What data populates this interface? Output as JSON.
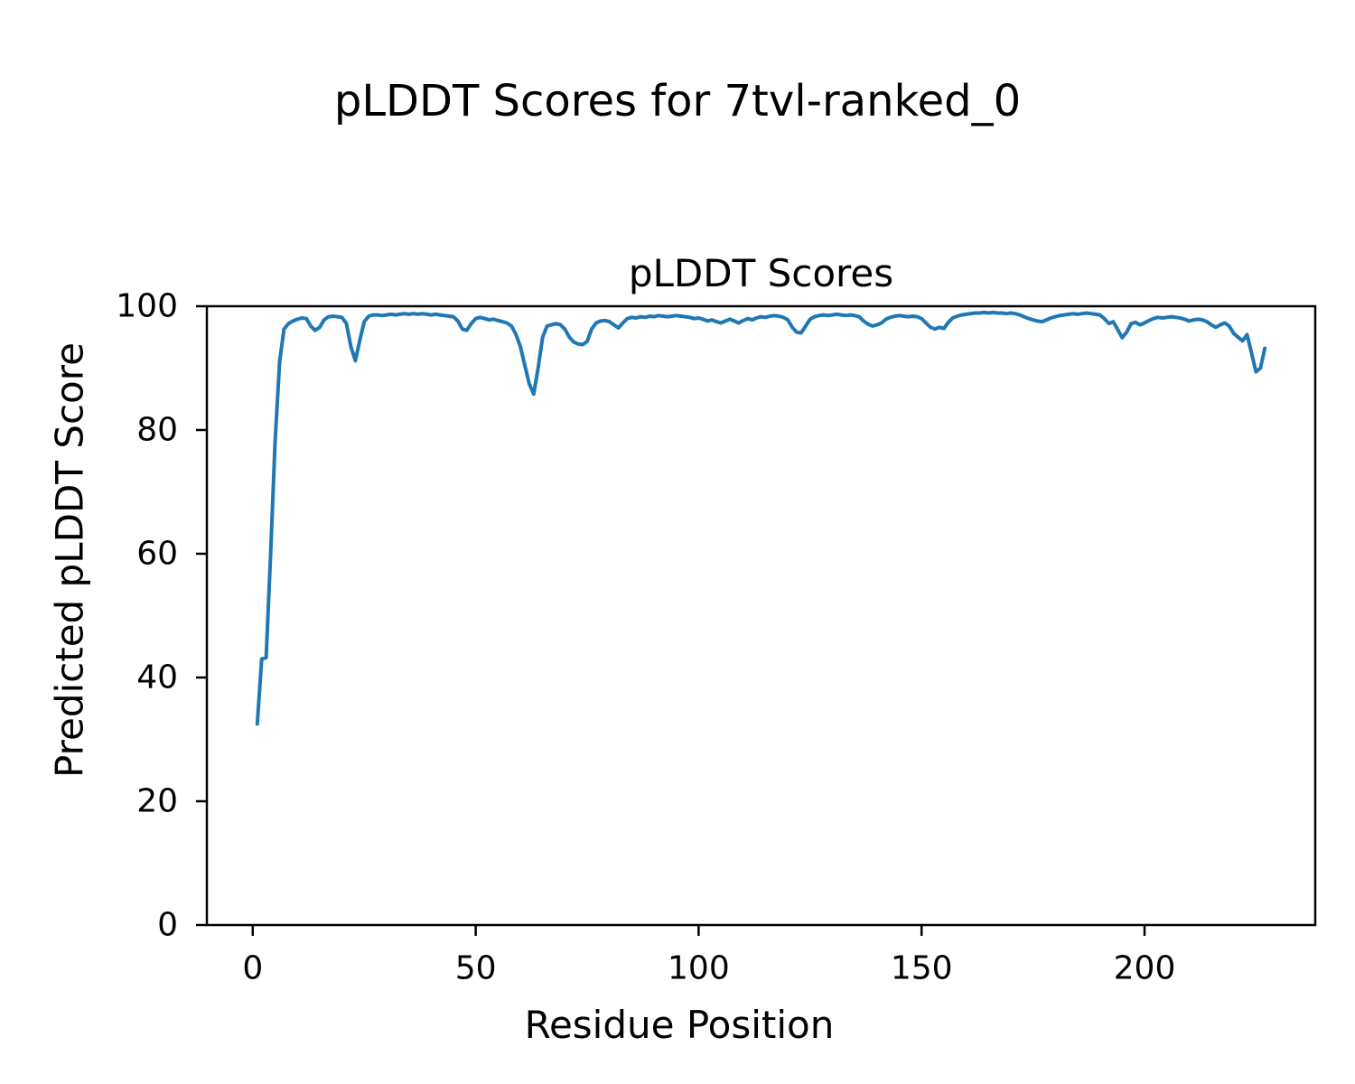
{
  "figure": {
    "suptitle": "pLDDT Scores for 7tvl-ranked_0",
    "axes_title": "pLDDT Scores",
    "xlabel": "Residue Position",
    "ylabel": "Predicted pLDDT Score"
  },
  "colors": {
    "line": "#1f77b4",
    "axis": "#000000",
    "background": "#ffffff"
  },
  "chart_data": {
    "type": "line",
    "title": "pLDDT Scores",
    "xlabel": "Residue Position",
    "ylabel": "Predicted pLDDT Score",
    "grid": false,
    "legend": "none",
    "xlim": [
      -10.3,
      238.3
    ],
    "ylim": [
      0,
      100
    ],
    "xticks": [
      0,
      50,
      100,
      150,
      200
    ],
    "yticks": [
      0,
      20,
      40,
      60,
      80,
      100
    ],
    "x_start": 1,
    "x_step": 1,
    "series": [
      {
        "name": "pLDDT",
        "color": "#1f77b4",
        "values": [
          32.5,
          43.0,
          43.2,
          60.0,
          78.0,
          91.0,
          96.3,
          97.2,
          97.6,
          97.9,
          98.1,
          98.0,
          96.8,
          96.1,
          96.6,
          97.8,
          98.3,
          98.4,
          98.3,
          98.2,
          97.2,
          93.5,
          91.2,
          94.5,
          97.5,
          98.4,
          98.6,
          98.6,
          98.5,
          98.6,
          98.7,
          98.6,
          98.7,
          98.8,
          98.7,
          98.8,
          98.7,
          98.8,
          98.7,
          98.6,
          98.7,
          98.6,
          98.5,
          98.4,
          98.3,
          97.6,
          96.3,
          96.1,
          97.2,
          98.0,
          98.2,
          98.0,
          97.8,
          97.9,
          97.7,
          97.5,
          97.3,
          96.8,
          95.5,
          93.5,
          90.5,
          87.5,
          85.8,
          90.0,
          95.0,
          96.8,
          97.0,
          97.2,
          97.0,
          96.3,
          95.0,
          94.2,
          93.9,
          93.8,
          94.3,
          96.3,
          97.3,
          97.6,
          97.7,
          97.5,
          97.0,
          96.5,
          97.3,
          98.0,
          98.2,
          98.1,
          98.3,
          98.2,
          98.4,
          98.3,
          98.5,
          98.4,
          98.3,
          98.4,
          98.5,
          98.4,
          98.3,
          98.2,
          98.0,
          98.1,
          97.9,
          97.6,
          97.8,
          97.5,
          97.3,
          97.6,
          97.9,
          97.6,
          97.3,
          97.7,
          98.0,
          97.8,
          98.1,
          98.3,
          98.2,
          98.4,
          98.5,
          98.4,
          98.2,
          97.8,
          96.6,
          95.8,
          95.7,
          96.8,
          97.9,
          98.3,
          98.5,
          98.6,
          98.5,
          98.6,
          98.7,
          98.6,
          98.5,
          98.6,
          98.5,
          98.3,
          97.6,
          97.1,
          96.8,
          97.0,
          97.3,
          97.9,
          98.2,
          98.4,
          98.5,
          98.4,
          98.3,
          98.4,
          98.3,
          98.0,
          97.3,
          96.6,
          96.3,
          96.6,
          96.4,
          97.4,
          98.1,
          98.4,
          98.6,
          98.7,
          98.8,
          98.9,
          98.9,
          99.0,
          98.9,
          99.0,
          98.9,
          98.9,
          98.8,
          98.9,
          98.8,
          98.6,
          98.3,
          98.0,
          97.8,
          97.6,
          97.5,
          97.8,
          98.1,
          98.3,
          98.5,
          98.6,
          98.7,
          98.8,
          98.7,
          98.8,
          98.9,
          98.8,
          98.7,
          98.6,
          98.0,
          97.2,
          97.5,
          96.2,
          94.9,
          95.8,
          97.2,
          97.4,
          97.0,
          97.3,
          97.7,
          98.0,
          98.2,
          98.1,
          98.2,
          98.3,
          98.2,
          98.1,
          97.9,
          97.6,
          97.8,
          97.9,
          97.8,
          97.5,
          97.0,
          96.6,
          97.0,
          97.3,
          96.8,
          95.6,
          95.0,
          94.4,
          95.4,
          92.5,
          89.4,
          90.0,
          93.2
        ]
      }
    ]
  }
}
